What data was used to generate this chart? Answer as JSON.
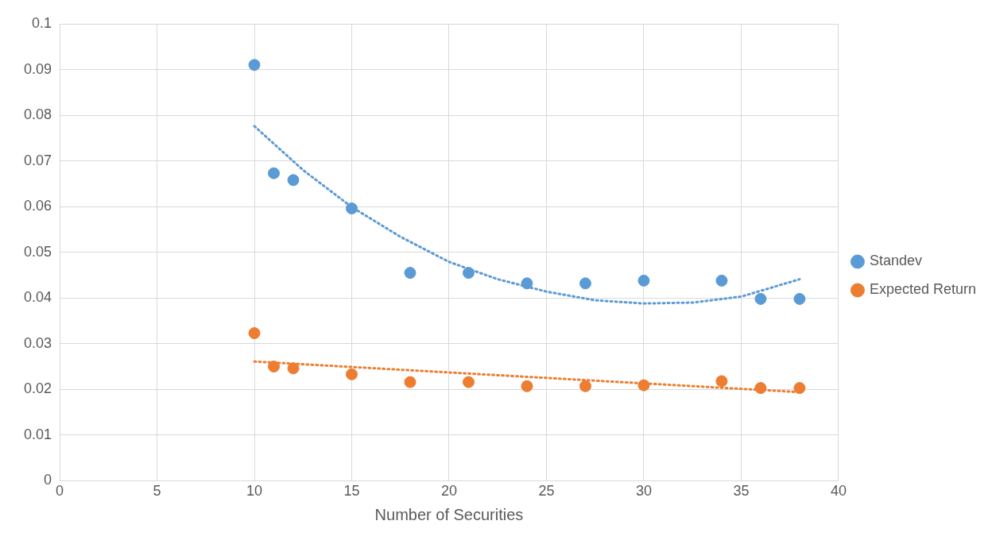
{
  "chart_data": {
    "type": "scatter",
    "xlabel": "Number of Securities",
    "xlim": [
      0,
      40
    ],
    "xticks": [
      0,
      5,
      10,
      15,
      20,
      25,
      30,
      35,
      40
    ],
    "ylim": [
      0,
      0.1
    ],
    "yticks": [
      0,
      0.01,
      0.02,
      0.03,
      0.04,
      0.05,
      0.06,
      0.07,
      0.08,
      0.09,
      0.1
    ],
    "grid": true,
    "legend": "right",
    "marker": "circle",
    "x": [
      10,
      11,
      12,
      15,
      18,
      21,
      24,
      27,
      30,
      34,
      36,
      38
    ],
    "series": [
      {
        "name": "Standev",
        "color": "#5b9bd5",
        "values": [
          0.091,
          0.0673,
          0.0658,
          0.0596,
          0.0455,
          0.0455,
          0.0432,
          0.0432,
          0.0438,
          0.0438,
          0.0398,
          0.0398
        ]
      },
      {
        "name": "Expected Return",
        "color": "#ed7d31",
        "values": [
          0.0323,
          0.025,
          0.0246,
          0.0233,
          0.0216,
          0.0216,
          0.0207,
          0.0207,
          0.0209,
          0.0218,
          0.0203,
          0.0203
        ]
      },
      {
        "type": "line",
        "color": "#5b9bd5",
        "line_style": "dotted",
        "marker": "none",
        "x": [
          10,
          12.5,
          15,
          17.5,
          20,
          22.5,
          25,
          27.5,
          30,
          32.5,
          35,
          38
        ],
        "values": [
          0.0776,
          0.068,
          0.0599,
          0.0534,
          0.0479,
          0.0441,
          0.0414,
          0.0395,
          0.0388,
          0.039,
          0.0403,
          0.0441
        ]
      },
      {
        "type": "line",
        "color": "#ed7d31",
        "line_style": "dotted",
        "marker": "none",
        "x": [
          10,
          38
        ],
        "values": [
          0.0261,
          0.0194
        ]
      }
    ]
  }
}
